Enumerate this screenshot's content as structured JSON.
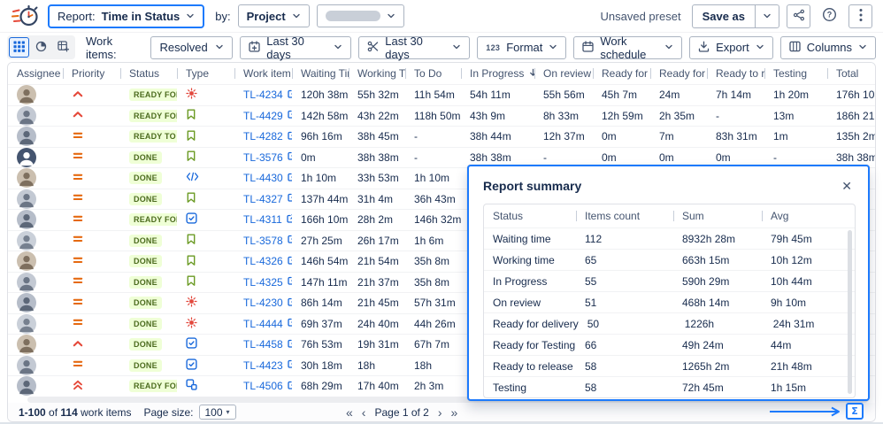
{
  "header": {
    "report_label": "Report:",
    "report_value": "Time in Status",
    "by_label": "by:",
    "project_value": "Project",
    "unsaved_preset": "Unsaved preset",
    "save_as_label": "Save as"
  },
  "toolbar": {
    "work_items_label": "Work items:",
    "work_items_value": "Resolved",
    "created_range_value": "Last 30 days",
    "resolved_range_value": "Last 30 days",
    "format_prefix": "123",
    "format_label": "Format",
    "work_schedule_label": "Work schedule",
    "export_label": "Export",
    "columns_label": "Columns"
  },
  "table": {
    "columns": [
      "Assignee",
      "Priority",
      "Status",
      "Type",
      "Work item k...",
      "Waiting Time",
      "Working Time",
      "To Do",
      "In Progress",
      "On review",
      "Ready for d...",
      "Ready for T...",
      "Ready to rel...",
      "Testing",
      "Total"
    ],
    "sort": {
      "column": "In Progress",
      "direction": "desc"
    },
    "rows": [
      {
        "avatar": "photo",
        "priority": "high",
        "status": "READY FOR ...",
        "type": "bug",
        "key": "TL-4234",
        "times": [
          "120h 38m",
          "55h 32m",
          "11h 54m",
          "54h 11m",
          "55h 56m",
          "45h 7m",
          "24m",
          "7h 14m",
          "1h 20m",
          "176h 10m"
        ]
      },
      {
        "avatar": "photo",
        "priority": "high",
        "status": "READY FOR ...",
        "type": "story",
        "key": "TL-4429",
        "times": [
          "142h 58m",
          "43h 22m",
          "118h 50m",
          "43h 9m",
          "8h 33m",
          "12h 59m",
          "2h 35m",
          "-",
          "13m",
          "186h 21m"
        ]
      },
      {
        "avatar": "photo",
        "priority": "medium",
        "status": "READY TO R...",
        "type": "story",
        "key": "TL-4282",
        "times": [
          "96h 16m",
          "38h 45m",
          "-",
          "38h 44m",
          "12h 37m",
          "0m",
          "7m",
          "83h 31m",
          "1m",
          "135h 2m"
        ]
      },
      {
        "avatar": "generic",
        "priority": "medium",
        "status": "DONE",
        "type": "story",
        "key": "TL-3576",
        "times": [
          "0m",
          "38h 38m",
          "-",
          "38h 38m",
          "-",
          "0m",
          "0m",
          "0m",
          "-",
          "38h 38m"
        ]
      },
      {
        "avatar": "photo",
        "priority": "medium",
        "status": "DONE",
        "type": "code",
        "key": "TL-4430",
        "times": [
          "1h 10m",
          "33h 53m",
          "1h 10m",
          "",
          "",
          "",
          "",
          "",
          "",
          ""
        ]
      },
      {
        "avatar": "photo",
        "priority": "medium",
        "status": "DONE",
        "type": "story",
        "key": "TL-4327",
        "times": [
          "137h 44m",
          "31h 4m",
          "36h 43m",
          "",
          "",
          "",
          "",
          "",
          "",
          ""
        ]
      },
      {
        "avatar": "photo",
        "priority": "medium",
        "status": "READY FOR ...",
        "type": "task",
        "key": "TL-4311",
        "times": [
          "166h 10m",
          "28h 2m",
          "146h 32m",
          "",
          "",
          "",
          "",
          "",
          "",
          ""
        ]
      },
      {
        "avatar": "photo",
        "priority": "medium",
        "status": "DONE",
        "type": "story",
        "key": "TL-3578",
        "times": [
          "27h 25m",
          "26h 17m",
          "1h 6m",
          "",
          "",
          "",
          "",
          "",
          "",
          ""
        ]
      },
      {
        "avatar": "photo",
        "priority": "medium",
        "status": "DONE",
        "type": "story",
        "key": "TL-4326",
        "times": [
          "146h 54m",
          "21h 54m",
          "35h 8m",
          "",
          "",
          "",
          "",
          "",
          "",
          ""
        ]
      },
      {
        "avatar": "photo",
        "priority": "medium",
        "status": "DONE",
        "type": "story",
        "key": "TL-4325",
        "times": [
          "147h 11m",
          "21h 37m",
          "35h 8m",
          "",
          "",
          "",
          "",
          "",
          "",
          ""
        ]
      },
      {
        "avatar": "photo",
        "priority": "medium",
        "status": "DONE",
        "type": "bug",
        "key": "TL-4230",
        "times": [
          "86h 14m",
          "21h 45m",
          "57h 31m",
          "",
          "",
          "",
          "",
          "",
          "",
          ""
        ]
      },
      {
        "avatar": "photo",
        "priority": "medium",
        "status": "DONE",
        "type": "bug",
        "key": "TL-4444",
        "times": [
          "69h 37m",
          "24h 40m",
          "44h 26m",
          "",
          "",
          "",
          "",
          "",
          "",
          ""
        ]
      },
      {
        "avatar": "photo",
        "priority": "high",
        "status": "DONE",
        "type": "task",
        "key": "TL-4458",
        "times": [
          "76h 53m",
          "19h 31m",
          "67h 7m",
          "",
          "",
          "",
          "",
          "",
          "",
          ""
        ]
      },
      {
        "avatar": "photo",
        "priority": "medium",
        "status": "DONE",
        "type": "task",
        "key": "TL-4423",
        "times": [
          "30h 18m",
          "18h",
          "18h",
          "",
          "",
          "",
          "",
          "",
          "",
          ""
        ]
      },
      {
        "avatar": "photo",
        "priority": "highest",
        "status": "READY FOR ...",
        "type": "subtask",
        "key": "TL-4506",
        "times": [
          "68h 29m",
          "17h 40m",
          "2h 3m",
          "",
          "",
          "",
          "",
          "",
          "",
          ""
        ]
      }
    ]
  },
  "summary": {
    "title": "Report summary",
    "columns": [
      "Status",
      "Items count",
      "Sum",
      "Avg"
    ],
    "rows": [
      [
        "Waiting time",
        "112",
        "8932h 28m",
        "79h 45m"
      ],
      [
        "Working time",
        "65",
        "663h 15m",
        "10h 12m"
      ],
      [
        "In Progress",
        "55",
        "590h 29m",
        "10h 44m"
      ],
      [
        "On review",
        "51",
        "468h 14m",
        "9h 10m"
      ],
      [
        "Ready for delivery",
        "50",
        "1226h",
        "24h 31m"
      ],
      [
        "Ready for Testing",
        "66",
        "49h 24m",
        "44m"
      ],
      [
        "Ready to release",
        "58",
        "1265h 2m",
        "21h 48m"
      ],
      [
        "Testing",
        "58",
        "72h 45m",
        "1h 15m"
      ]
    ]
  },
  "pagination": {
    "range": "1-100",
    "of_label": "of",
    "total": "114",
    "suffix": "work items",
    "page_size_label": "Page size:",
    "page_size": "100",
    "page_text": "Page 1 of 2"
  },
  "icons": {
    "logo": "stopwatch-logo",
    "view_modes": [
      "grid-view-icon",
      "pie-chart-view-icon",
      "matrix-view-icon"
    ],
    "type_icons": [
      "bug-icon",
      "story-icon",
      "task-icon",
      "subtask-icon",
      "code-icon"
    ],
    "priority_icons": [
      "priority-high-icon",
      "priority-medium-icon",
      "priority-highest-icon"
    ],
    "summary_button": "sigma-icon"
  },
  "colors": {
    "annotation_blue": "#1D7AFC",
    "link_blue": "#1868DB",
    "badge_bg": "#EFFFD6",
    "badge_text": "#4C6B1F",
    "priority_medium": "#E56910",
    "priority_high": "#E5493A",
    "bug_red": "#E2483D",
    "story_green": "#6A9A23"
  }
}
